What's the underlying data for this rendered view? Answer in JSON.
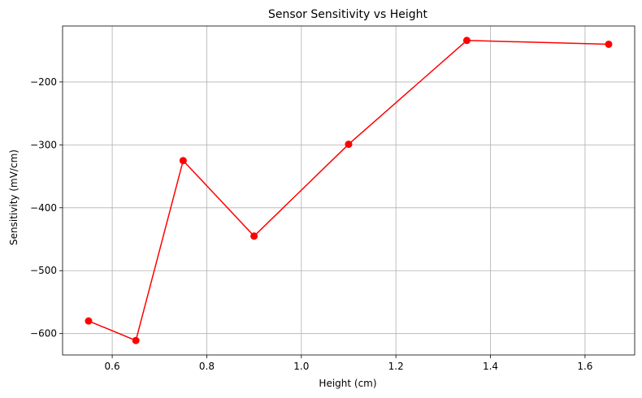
{
  "chart_data": {
    "type": "line",
    "title": "Sensor Sensitivity vs Height",
    "xlabel": "Height (cm)",
    "ylabel": "Sensitivity (mV/cm)",
    "xlim": [
      0.495,
      1.705
    ],
    "ylim": [
      -634,
      -111
    ],
    "xticks": [
      0.6,
      0.8,
      1.0,
      1.2,
      1.4,
      1.6
    ],
    "xtick_labels": [
      "0.6",
      "0.8",
      "1.0",
      "1.2",
      "1.4",
      "1.6"
    ],
    "yticks": [
      -600,
      -500,
      -400,
      -300,
      -200
    ],
    "ytick_labels": [
      "−600",
      "−500",
      "−400",
      "−300",
      "−200"
    ],
    "grid": true,
    "series": [
      {
        "color": "#ff0000",
        "marker": "circle",
        "x": [
          0.55,
          0.65,
          0.75,
          0.9,
          1.1,
          1.35,
          1.65
        ],
        "y": [
          -580,
          -611,
          -325,
          -445,
          -299,
          -134,
          -140
        ]
      }
    ]
  }
}
